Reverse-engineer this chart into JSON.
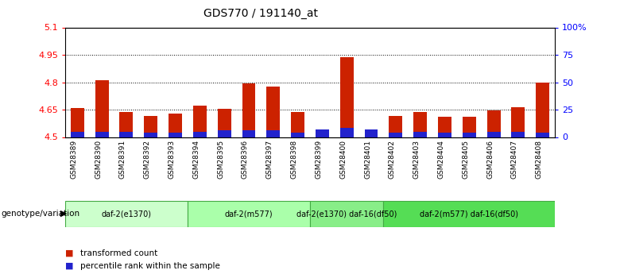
{
  "title": "GDS770 / 191140_at",
  "samples": [
    "GSM28389",
    "GSM28390",
    "GSM28391",
    "GSM28392",
    "GSM28393",
    "GSM28394",
    "GSM28395",
    "GSM28396",
    "GSM28397",
    "GSM28398",
    "GSM28399",
    "GSM28400",
    "GSM28401",
    "GSM28402",
    "GSM28403",
    "GSM28404",
    "GSM28405",
    "GSM28406",
    "GSM28407",
    "GSM28408"
  ],
  "red_values": [
    4.66,
    4.81,
    4.635,
    4.615,
    4.63,
    4.67,
    4.655,
    4.795,
    4.775,
    4.635,
    4.505,
    4.935,
    4.51,
    4.615,
    4.635,
    4.61,
    4.61,
    4.645,
    4.665,
    4.8
  ],
  "blue_values": [
    0.03,
    0.03,
    0.03,
    0.025,
    0.025,
    0.03,
    0.035,
    0.035,
    0.035,
    0.025,
    0.04,
    0.05,
    0.04,
    0.025,
    0.03,
    0.025,
    0.025,
    0.03,
    0.03,
    0.025
  ],
  "ymin": 4.5,
  "ymax": 5.1,
  "yticks_left": [
    4.5,
    4.65,
    4.8,
    4.95,
    5.1
  ],
  "ytick_labels_left": [
    "4.5",
    "4.65",
    "4.8",
    "4.95",
    "5.1"
  ],
  "yticks_right": [
    0,
    25,
    50,
    75,
    100
  ],
  "ytick_labels_right": [
    "0",
    "25",
    "50",
    "75",
    "100%"
  ],
  "groups": [
    {
      "label": "daf-2(e1370)",
      "start": 0,
      "end": 5
    },
    {
      "label": "daf-2(m577)",
      "start": 5,
      "end": 10
    },
    {
      "label": "daf-2(e1370) daf-16(df50)",
      "start": 10,
      "end": 13
    },
    {
      "label": "daf-2(m577) daf-16(df50)",
      "start": 13,
      "end": 20
    }
  ],
  "group_colors": [
    "#ccffcc",
    "#aaffaa",
    "#88ee88",
    "#55dd55"
  ],
  "genotype_label": "genotype/variation",
  "legend_red": "transformed count",
  "legend_blue": "percentile rank within the sample",
  "bar_width": 0.55,
  "red_color": "#cc2200",
  "blue_color": "#2222cc",
  "bg_color": "#ffffff"
}
